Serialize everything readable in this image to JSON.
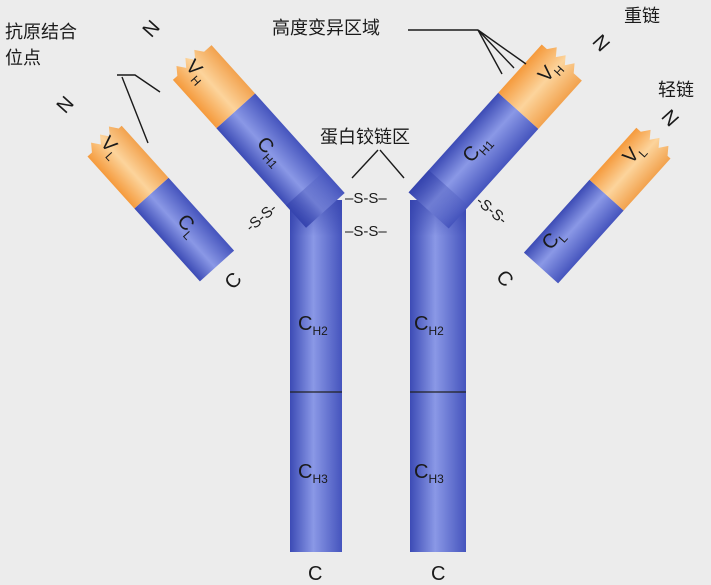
{
  "labels": {
    "antigen_site_line1": "抗原结合",
    "antigen_site_line2": "位点",
    "hypervariable": "高度变异区域",
    "heavy_chain": "重链",
    "light_chain": "轻链",
    "hinge": "蛋白铰链区"
  },
  "disulfide": {
    "left_arm": "-S-S-",
    "right_arm": "-S-S-",
    "hinge_top": "–S-S–",
    "hinge_bottom": "–S-S–"
  },
  "domains": {
    "c": "C",
    "v": "V",
    "sub_h": "H",
    "sub_l": "L",
    "sub_h1": "H1",
    "sub_h2": "H2",
    "sub_h3": "H3"
  },
  "termini": {
    "n": "N",
    "c": "C"
  },
  "colors": {
    "heavy_chain": "#6a7ad6",
    "variable": "#f5a95a",
    "background": "#ececec"
  }
}
